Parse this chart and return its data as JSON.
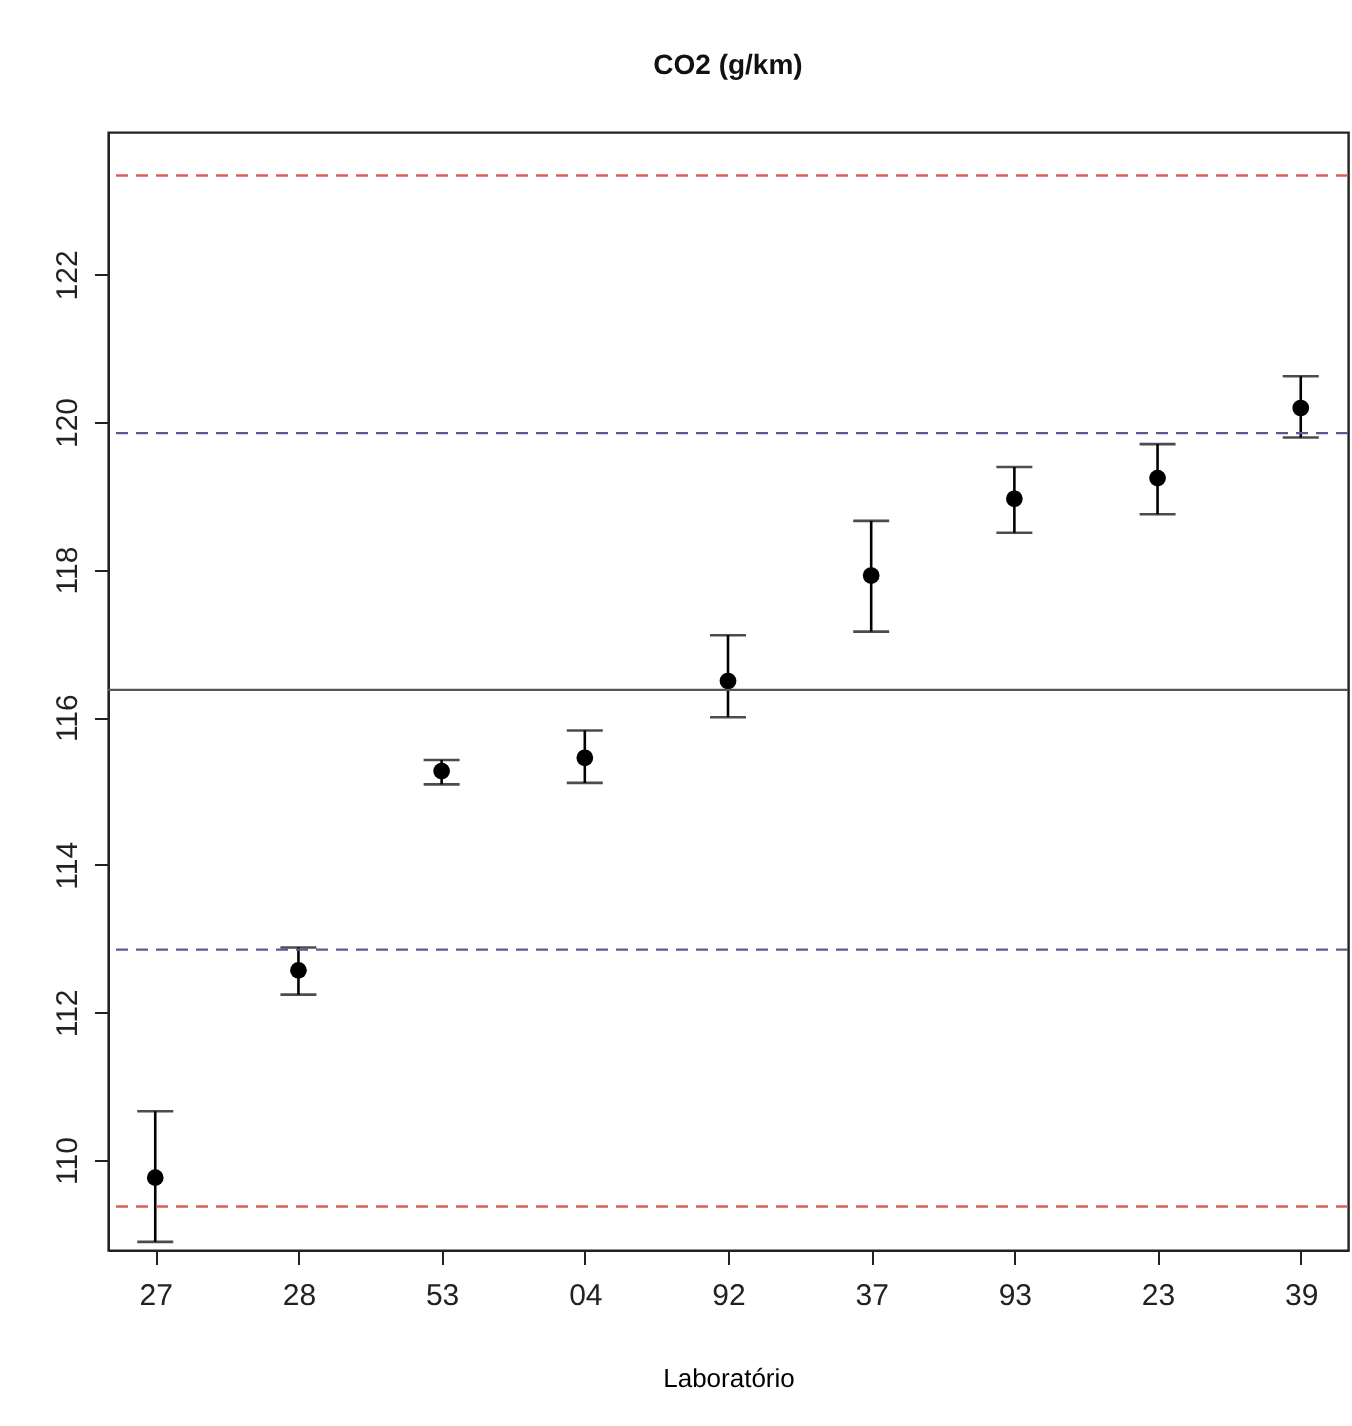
{
  "chart_data": {
    "type": "scatter",
    "title": "CO2 (g/km)",
    "xlabel": "Laboratório",
    "categories": [
      "27",
      "28",
      "53",
      "04",
      "92",
      "37",
      "93",
      "23",
      "39"
    ],
    "values": [
      109.76,
      112.57,
      115.27,
      115.45,
      116.49,
      117.92,
      118.96,
      119.24,
      120.19
    ],
    "errors": [
      [
        108.89,
        110.66
      ],
      [
        112.24,
        112.88
      ],
      [
        115.09,
        115.42
      ],
      [
        115.11,
        115.82
      ],
      [
        116.0,
        117.11
      ],
      [
        117.16,
        118.66
      ],
      [
        118.5,
        119.39
      ],
      [
        118.75,
        119.7
      ],
      [
        119.79,
        120.62
      ]
    ],
    "color": "#000000",
    "marker": "circle",
    "ylim": [
      108.78,
      123.93
    ],
    "yticks": [
      110,
      112,
      114,
      116,
      118,
      120,
      122
    ],
    "ref_lines": [
      {
        "axis": "y",
        "value": 123.34,
        "color": "#d9605a",
        "line_style": "dashed"
      },
      {
        "axis": "y",
        "value": 119.85,
        "color": "#5a5a8e",
        "line_style": "dashed"
      },
      {
        "axis": "y",
        "value": 116.37,
        "color": "#555555",
        "line_style": "solid"
      },
      {
        "axis": "y",
        "value": 112.85,
        "color": "#5a5a8e",
        "line_style": "dashed"
      },
      {
        "axis": "y",
        "value": 109.37,
        "color": "#d9605a",
        "line_style": "dashed"
      }
    ],
    "grid": false
  }
}
